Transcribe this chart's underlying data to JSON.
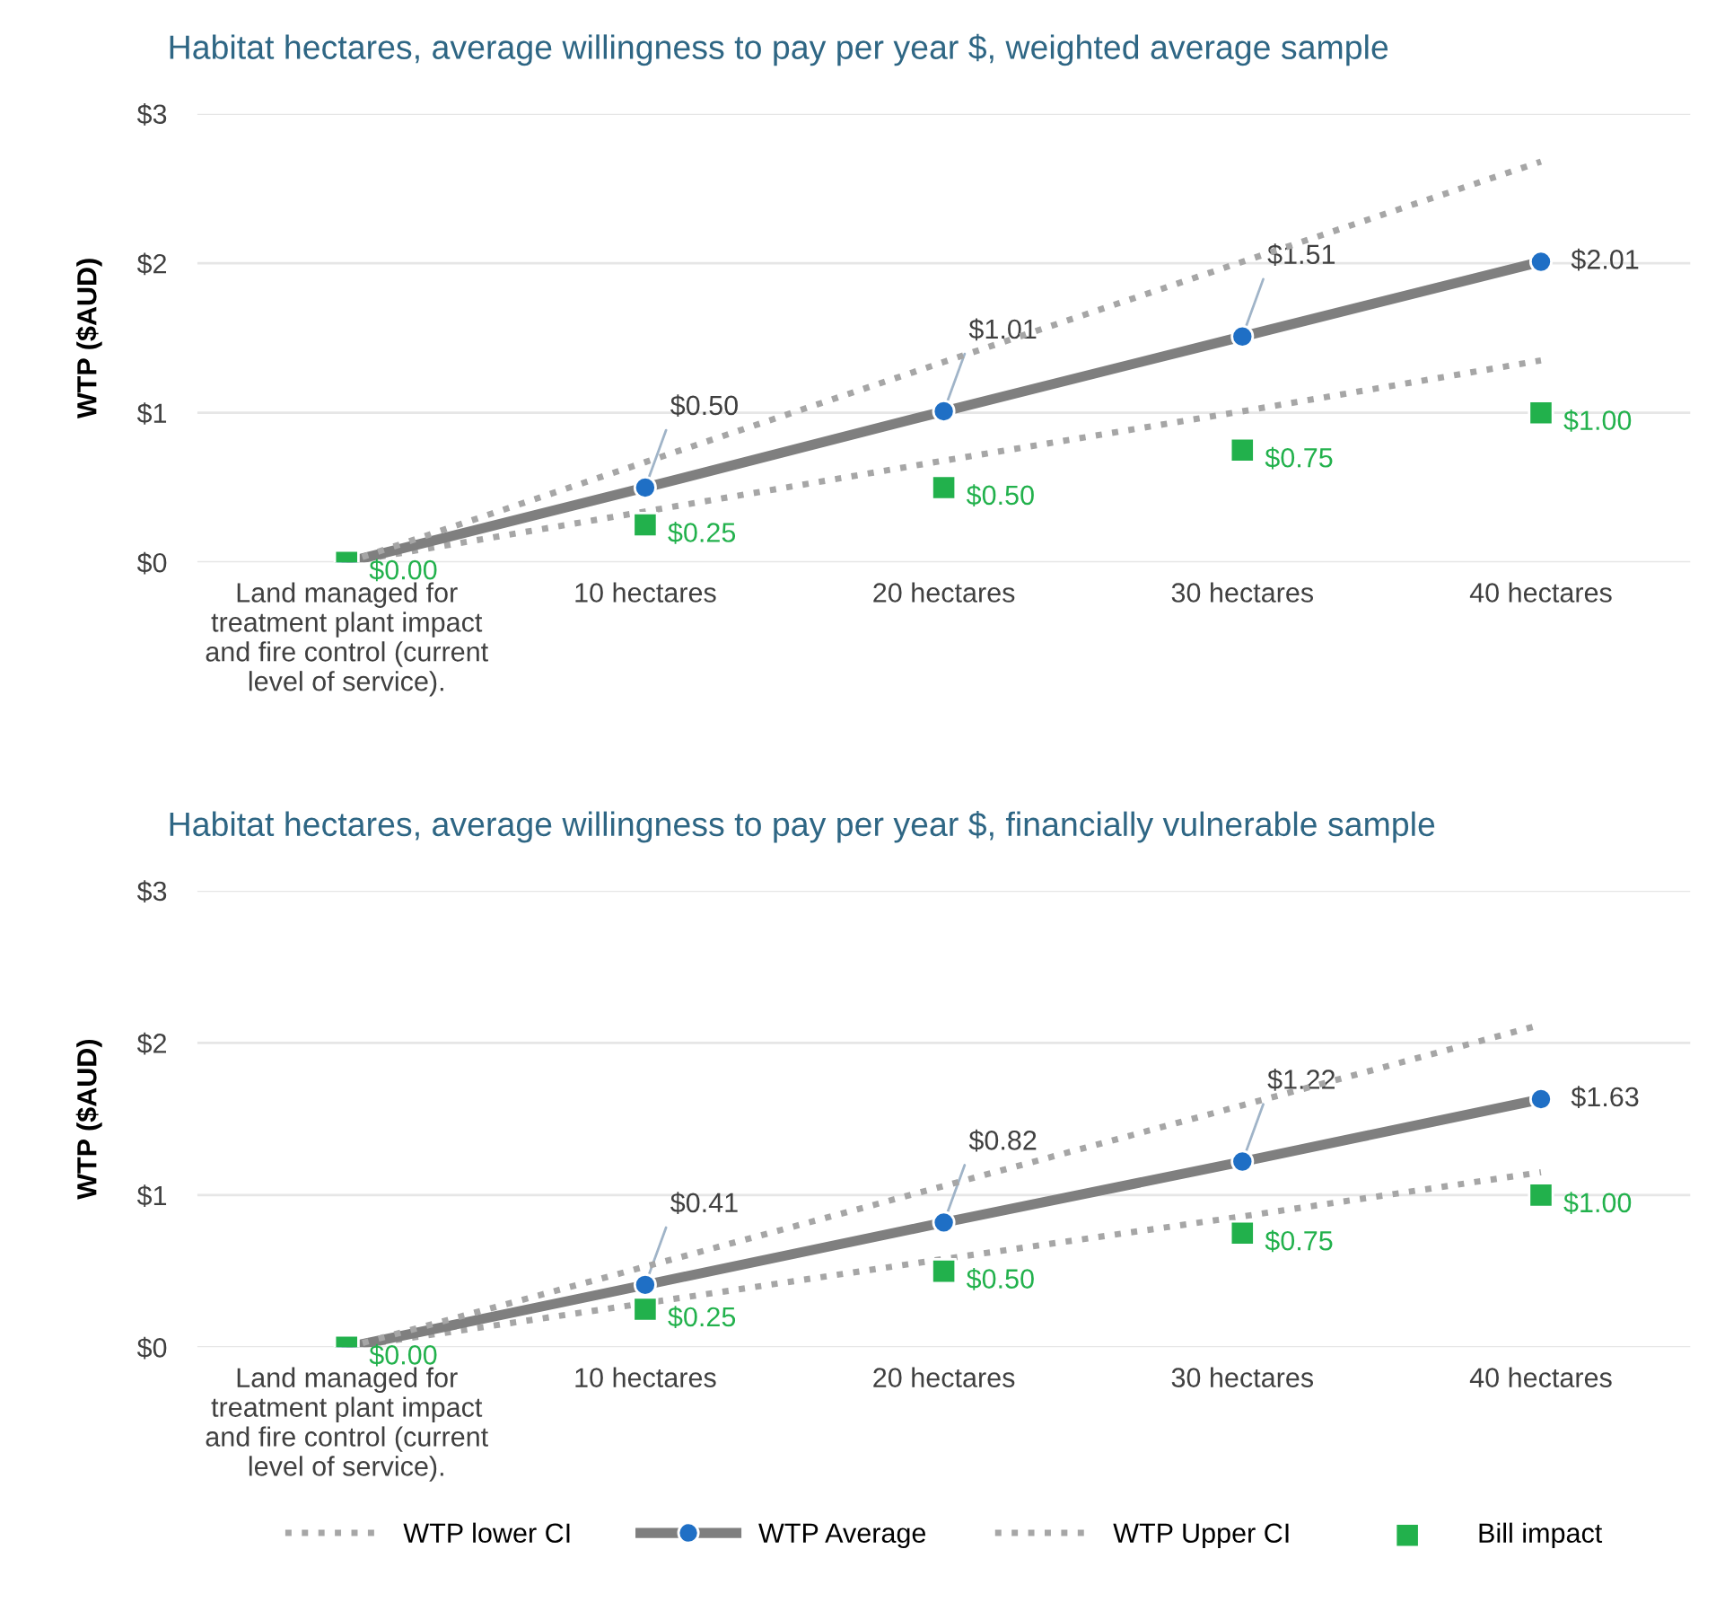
{
  "chart_data": [
    {
      "type": "line",
      "title": "Habitat hectares, average willingness to pay per year $, weighted average sample",
      "ylabel": "WTP ($AUD)",
      "categories": [
        "Land managed for\ntreatment plant impact\nand fire control (current\nlevel of service).",
        "10 hectares",
        "20 hectares",
        "30 hectares",
        "40 hectares"
      ],
      "ylim": [
        0,
        3
      ],
      "yticks": [
        {
          "value": 0,
          "label": "$0"
        },
        {
          "value": 1,
          "label": "$1"
        },
        {
          "value": 2,
          "label": "$2"
        },
        {
          "value": 3,
          "label": "$3"
        }
      ],
      "grid": "y",
      "series": [
        {
          "color": "#a6a6a6",
          "line_style": "dotted",
          "marker": "none",
          "values": [
            0,
            0.34,
            0.68,
            1.01,
            1.35
          ]
        },
        {
          "color": "#7f7f7f",
          "line_style": "solid",
          "marker": "circle",
          "colors": [
            "#1f6fc5",
            "#1f6fc5",
            "#1f6fc5",
            "#1f6fc5",
            "#1f6fc5"
          ],
          "values": [
            0,
            0.5,
            1.01,
            1.51,
            2.01
          ],
          "value_labels": [
            null,
            "$0.50",
            "$1.01",
            "$1.51",
            "$2.01"
          ]
        },
        {
          "color": "#a6a6a6",
          "line_style": "dotted",
          "marker": "none",
          "values": [
            0,
            0.67,
            1.34,
            2.01,
            2.68
          ]
        },
        {
          "type": "scatter",
          "color": "#22b14c",
          "marker": "square",
          "values": [
            0,
            0.25,
            0.5,
            0.75,
            1.0
          ],
          "value_labels": [
            "$0.00",
            "$0.25",
            "$0.50",
            "$0.75",
            "$1.00"
          ]
        }
      ]
    },
    {
      "type": "line",
      "title": "Habitat hectares, average willingness to pay per year $, financially vulnerable sample",
      "ylabel": "WTP ($AUD)",
      "categories": [
        "Land managed for\ntreatment plant impact\nand fire control (current\nlevel of service).",
        "10 hectares",
        "20 hectares",
        "30 hectares",
        "40 hectares"
      ],
      "ylim": [
        0,
        3
      ],
      "yticks": [
        {
          "value": 0,
          "label": "$0"
        },
        {
          "value": 1,
          "label": "$1"
        },
        {
          "value": 2,
          "label": "$2"
        },
        {
          "value": 3,
          "label": "$3"
        }
      ],
      "grid": "y",
      "legend": "bottom",
      "series": [
        {
          "name": "WTP lower CI",
          "color": "#a6a6a6",
          "line_style": "dotted",
          "marker": "none",
          "values": [
            0,
            0.29,
            0.58,
            0.86,
            1.15
          ]
        },
        {
          "name": "WTP Average",
          "color": "#7f7f7f",
          "line_style": "solid",
          "marker": "circle",
          "colors": [
            "#1f6fc5",
            "#1f6fc5",
            "#1f6fc5",
            "#1f6fc5",
            "#1f6fc5"
          ],
          "values": [
            0,
            0.41,
            0.82,
            1.22,
            1.63
          ],
          "value_labels": [
            null,
            "$0.41",
            "$0.82",
            "$1.22",
            "$1.63"
          ]
        },
        {
          "name": "WTP Upper CI",
          "color": "#a6a6a6",
          "line_style": "dotted",
          "marker": "none",
          "values": [
            0,
            0.53,
            1.06,
            1.59,
            2.12
          ]
        },
        {
          "name": "Bill impact",
          "type": "scatter",
          "color": "#22b14c",
          "marker": "square",
          "values": [
            0,
            0.25,
            0.5,
            0.75,
            1.0
          ],
          "value_labels": [
            "$0.00",
            "$0.25",
            "$0.50",
            "$0.75",
            "$1.00"
          ]
        }
      ]
    }
  ]
}
